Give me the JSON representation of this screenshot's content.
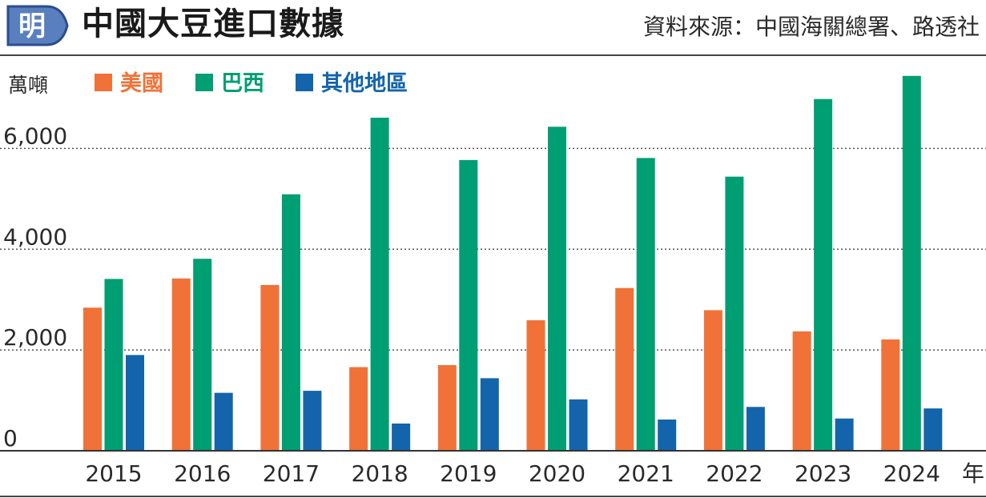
{
  "header": {
    "logo_char": "明",
    "title": "中國大豆進口數據",
    "source": "資料來源：中國海關總署、路透社"
  },
  "chart_data": {
    "type": "bar",
    "ylabel": "萬噸",
    "xunit": "年",
    "categories": [
      "2015",
      "2016",
      "2017",
      "2018",
      "2019",
      "2020",
      "2021",
      "2022",
      "2023",
      "2024"
    ],
    "series": [
      {
        "name": "美國",
        "color": "#f07238",
        "values": [
          2840,
          3420,
          3290,
          1660,
          1700,
          2590,
          3230,
          2790,
          2370,
          2210
        ]
      },
      {
        "name": "巴西",
        "color": "#009e73",
        "values": [
          3410,
          3810,
          5090,
          6610,
          5770,
          6430,
          5810,
          5440,
          6980,
          7440
        ]
      },
      {
        "name": "其他地區",
        "color": "#1464ac",
        "values": [
          1900,
          1150,
          1190,
          540,
          1440,
          1020,
          620,
          870,
          640,
          840
        ]
      }
    ],
    "ylim": [
      0,
      7500
    ],
    "yticks": [
      0,
      2000,
      4000,
      6000
    ],
    "ytick_labels": [
      "0",
      "2,000",
      "4,000",
      "6,000"
    ],
    "grid": true,
    "legend": "top-left"
  }
}
